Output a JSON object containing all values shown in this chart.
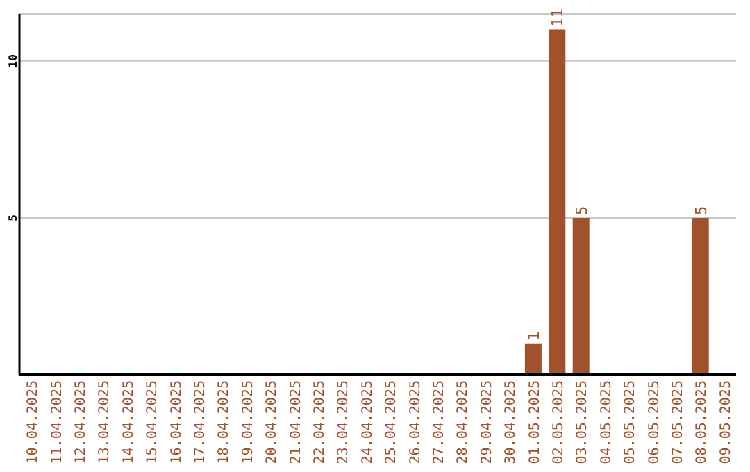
{
  "chart_data": {
    "type": "bar",
    "categories": [
      "10.04.2025",
      "11.04.2025",
      "12.04.2025",
      "13.04.2025",
      "14.04.2025",
      "15.04.2025",
      "16.04.2025",
      "17.04.2025",
      "18.04.2025",
      "19.04.2025",
      "20.04.2025",
      "21.04.2025",
      "22.04.2025",
      "23.04.2025",
      "24.04.2025",
      "25.04.2025",
      "26.04.2025",
      "27.04.2025",
      "28.04.2025",
      "29.04.2025",
      "30.04.2025",
      "01.05.2025",
      "02.05.2025",
      "03.05.2025",
      "04.05.2025",
      "05.05.2025",
      "06.05.2025",
      "07.05.2025",
      "08.05.2025",
      "09.05.2025"
    ],
    "values": [
      0,
      0,
      0,
      0,
      0,
      0,
      0,
      0,
      0,
      0,
      0,
      0,
      0,
      0,
      0,
      0,
      0,
      0,
      0,
      0,
      0,
      1,
      11,
      5,
      0,
      0,
      0,
      0,
      5,
      0
    ],
    "value_labels": [
      null,
      null,
      null,
      null,
      null,
      null,
      null,
      null,
      null,
      null,
      null,
      null,
      null,
      null,
      null,
      null,
      null,
      null,
      null,
      null,
      null,
      "1",
      "11",
      "5",
      null,
      null,
      null,
      null,
      "5",
      null
    ],
    "color": "#a0522d",
    "ylim": [
      0,
      11.5
    ],
    "yticks": [
      5,
      10
    ],
    "grid": "y"
  }
}
